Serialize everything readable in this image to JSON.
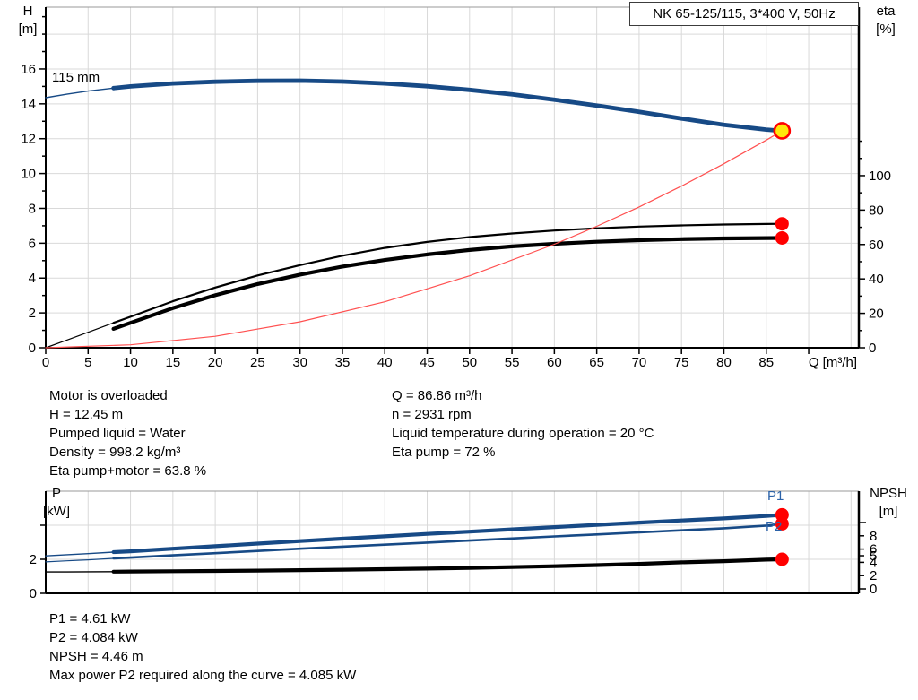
{
  "title_box": {
    "label": "NK 65-125/115, 3*400 V, 50Hz"
  },
  "colors": {
    "curve_blue": "#174a86",
    "label_blue": "#2b62a8",
    "red": "#ff0000",
    "system_red": "#ff5050",
    "duty_yellow": "#ffe60a",
    "grid": "#d9d9d9",
    "axis": "#000000",
    "border": "#9a9a9a"
  },
  "info": {
    "top_left": [
      "Motor is overloaded",
      "H = 12.45 m",
      "Pumped liquid = Water",
      "Density = 998.2 kg/m³",
      "Eta pump+motor = 63.8 %"
    ],
    "top_right": [
      "Q = 86.86 m³/h",
      "n = 2931 rpm",
      "Liquid temperature during operation = 20 °C",
      "Eta pump = 72 %"
    ],
    "bottom": [
      "P1 = 4.61 kW",
      "P2 = 4.084 kW",
      "NPSH = 4.46 m",
      "Max power P2 required along the curve = 4.085 kW"
    ]
  },
  "chart_data": [
    {
      "id": "hq-eta-chart",
      "type": "line",
      "title": "NK 65-125/115, 3*400 V, 50Hz",
      "xlabel": "Q [m³/h]",
      "ylabel_left": [
        "H",
        "[m]"
      ],
      "ylabel_right": [
        "eta",
        "[%]"
      ],
      "impeller_label": "115 mm",
      "xlim": [
        0,
        96
      ],
      "ylim_left": [
        0,
        19.5
      ],
      "ylim_right": [
        0,
        197
      ],
      "x_ticks": {
        "min": 0,
        "max": 85,
        "step": 5,
        "tick_max": 90
      },
      "left_ticks": {
        "min": 0,
        "max": 16,
        "step": 2,
        "minor_step": 1,
        "minor_max": 19
      },
      "right_ticks": {
        "min": 0,
        "max": 100,
        "step": 20,
        "minor_step": 10,
        "minor_max": 120
      },
      "grid": {
        "x_step": 5,
        "y_left_step": 2,
        "y_left_max": 18
      },
      "series": [
        {
          "name": "H curve",
          "axis": "left",
          "color_key": "curve_blue",
          "width": 4.8,
          "thin_width": 1.4,
          "thin_until": 8,
          "x": [
            0,
            2.5,
            5,
            8,
            10,
            15,
            20,
            25,
            30,
            35,
            40,
            45,
            50,
            55,
            60,
            65,
            70,
            75,
            80,
            85,
            86.86
          ],
          "y": [
            14.35,
            14.55,
            14.73,
            14.9,
            15.0,
            15.17,
            15.27,
            15.32,
            15.33,
            15.28,
            15.17,
            15.01,
            14.8,
            14.54,
            14.24,
            13.9,
            13.54,
            13.16,
            12.8,
            12.52,
            12.45
          ]
        },
        {
          "name": "Eta pump",
          "axis": "right",
          "color_key": "axis",
          "width": 2.2,
          "thin_width": 1.2,
          "thin_until": 8,
          "x": [
            0,
            2.5,
            5,
            8,
            10,
            15,
            20,
            25,
            30,
            35,
            40,
            45,
            50,
            55,
            60,
            65,
            70,
            75,
            80,
            85,
            86.86
          ],
          "y": [
            0,
            4.5,
            9,
            14.5,
            18,
            27,
            35,
            42,
            48,
            53.5,
            58,
            61.5,
            64.3,
            66.4,
            68.1,
            69.4,
            70.4,
            71.1,
            71.6,
            71.9,
            72
          ]
        },
        {
          "name": "Eta pump motor",
          "axis": "right",
          "color_key": "axis",
          "width": 4.2,
          "x": [
            8,
            10,
            15,
            20,
            25,
            30,
            35,
            40,
            45,
            50,
            55,
            60,
            65,
            70,
            75,
            80,
            85,
            86.86
          ],
          "y": [
            11,
            14.5,
            23,
            30.5,
            37,
            42.5,
            47.2,
            51,
            54.2,
            56.8,
            58.9,
            60.4,
            61.6,
            62.5,
            63.1,
            63.5,
            63.75,
            63.8
          ]
        },
        {
          "name": "System curve",
          "axis": "left",
          "color_key": "system_red",
          "width": 1.2,
          "x": [
            0,
            10,
            20,
            30,
            40,
            50,
            60,
            65,
            70,
            75,
            80,
            85,
            86.86
          ],
          "y": [
            0,
            0.17,
            0.66,
            1.49,
            2.64,
            4.13,
            5.94,
            6.97,
            8.08,
            9.28,
            10.56,
            11.92,
            12.45
          ]
        }
      ],
      "points": [
        {
          "name": "duty-point",
          "axis": "left",
          "x": 86.86,
          "y": 12.45,
          "style": "duty"
        },
        {
          "name": "eta-pump-point",
          "axis": "right",
          "x": 86.86,
          "y": 72,
          "style": "red"
        },
        {
          "name": "eta-pump-motor-point",
          "axis": "right",
          "x": 86.86,
          "y": 63.8,
          "style": "red"
        }
      ]
    },
    {
      "id": "power-npsh-chart",
      "type": "line",
      "title": "",
      "xlabel": "",
      "ylabel_left": [
        "P",
        "[kW]"
      ],
      "ylabel_right": [
        "NPSH",
        "[m]"
      ],
      "xlim": [
        0,
        96
      ],
      "ylim_left": [
        0,
        6
      ],
      "ylim_right": [
        0,
        14.7
      ],
      "left_ticks": {
        "values": [
          0,
          2,
          4
        ],
        "labels": [
          "0",
          "2",
          ""
        ]
      },
      "right_ticks": {
        "values": [
          0,
          2,
          4,
          5,
          6,
          8,
          10
        ],
        "labels": [
          "0",
          "2",
          "4",
          "5",
          "6",
          "8",
          ""
        ]
      },
      "grid": {
        "x_step": 5,
        "y_left_vals": [
          2,
          4
        ]
      },
      "series": [
        {
          "name": "P1",
          "axis": "left",
          "color_key": "curve_blue",
          "width": 4.2,
          "thin_width": 1.4,
          "thin_until": 8,
          "x": [
            0,
            2.5,
            5,
            8,
            10,
            15,
            20,
            25,
            30,
            35,
            40,
            45,
            50,
            55,
            60,
            65,
            70,
            75,
            80,
            85,
            86.86
          ],
          "y": [
            2.2,
            2.27,
            2.33,
            2.42,
            2.47,
            2.62,
            2.77,
            2.92,
            3.07,
            3.21,
            3.35,
            3.49,
            3.62,
            3.76,
            3.89,
            4.02,
            4.15,
            4.28,
            4.4,
            4.54,
            4.61
          ]
        },
        {
          "name": "P2",
          "axis": "left",
          "color_key": "curve_blue",
          "width": 2.6,
          "thin_width": 1.2,
          "thin_until": 8,
          "x": [
            0,
            2.5,
            5,
            8,
            10,
            15,
            20,
            25,
            30,
            35,
            40,
            45,
            50,
            55,
            60,
            65,
            70,
            75,
            80,
            85,
            86.86
          ],
          "y": [
            1.85,
            1.91,
            1.97,
            2.05,
            2.1,
            2.23,
            2.36,
            2.49,
            2.62,
            2.74,
            2.86,
            2.98,
            3.1,
            3.22,
            3.34,
            3.46,
            3.58,
            3.7,
            3.82,
            3.98,
            4.08
          ]
        },
        {
          "name": "NPSH",
          "axis": "right",
          "color_key": "axis",
          "width": 4.2,
          "thin_width": 1.4,
          "thin_until": 8,
          "x": [
            0,
            2.5,
            5,
            8,
            10,
            15,
            20,
            25,
            30,
            35,
            40,
            45,
            50,
            55,
            60,
            65,
            70,
            75,
            80,
            85,
            86.86
          ],
          "y": [
            2.55,
            2.56,
            2.58,
            2.6,
            2.62,
            2.66,
            2.7,
            2.76,
            2.82,
            2.89,
            2.97,
            3.06,
            3.16,
            3.28,
            3.42,
            3.58,
            3.77,
            4.0,
            4.18,
            4.4,
            4.46
          ]
        }
      ],
      "points": [
        {
          "name": "p1-point",
          "axis": "left",
          "x": 86.86,
          "y": 4.61,
          "style": "red"
        },
        {
          "name": "p2-point",
          "axis": "left",
          "x": 86.86,
          "y": 4.084,
          "style": "red"
        },
        {
          "name": "npsh-point",
          "axis": "right",
          "x": 86.86,
          "y": 4.46,
          "style": "red"
        }
      ],
      "series_labels": [
        "P1",
        "P2"
      ]
    }
  ]
}
